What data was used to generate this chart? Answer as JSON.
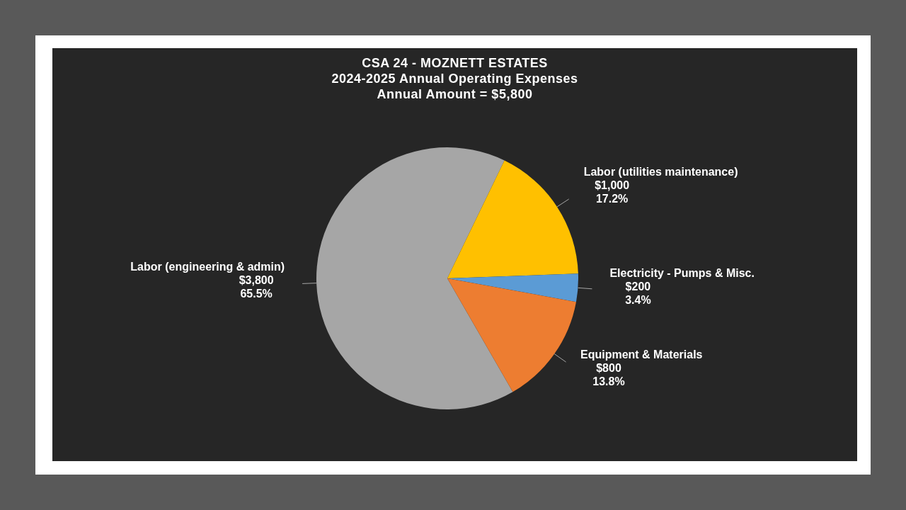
{
  "chart_data": {
    "type": "pie",
    "title": "CSA 24 - MOZNETT ESTATES\n2024-2025 Annual Operating Expenses\nAnnual Amount = $5,800",
    "categories": [
      "Labor (engineering & admin)",
      "Labor (utilities maintenance)",
      "Electricity - Pumps & Misc.",
      "Equipment & Materials"
    ],
    "values": [
      3800,
      1000,
      200,
      800
    ],
    "colors": [
      "#a6a6a6",
      "#ffc000",
      "#5b9bd5",
      "#ed7d31"
    ],
    "value_labels": [
      "$3,800\n65.5%",
      "$1,000\n17.2%",
      "$200\n3.4%",
      "$800\n13.8%"
    ],
    "legend": false
  }
}
